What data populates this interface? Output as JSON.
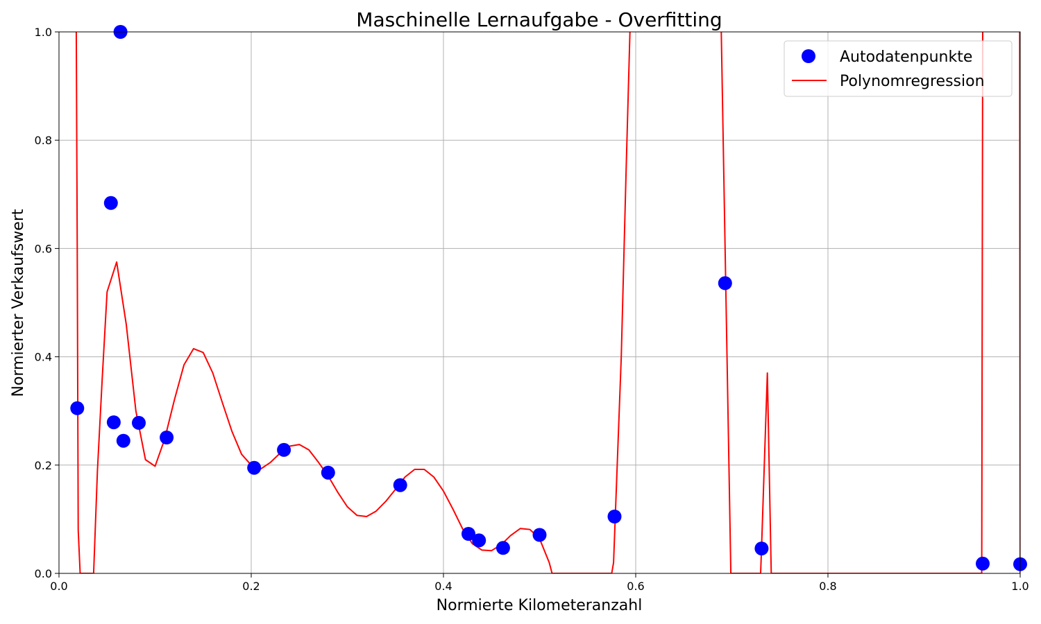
{
  "chart_data": {
    "type": "scatter",
    "title": "Maschinelle Lernaufgabe - Overfitting",
    "xlabel": "Normierte Kilometeranzahl",
    "ylabel": "Normierter Verkaufswert",
    "xlim": [
      0.0,
      1.0
    ],
    "ylim": [
      0.0,
      1.0
    ],
    "grid": true,
    "legend_position": "top-right",
    "x_ticks": [
      "0.0",
      "0.2",
      "0.4",
      "0.6",
      "0.8",
      "1.0"
    ],
    "y_ticks": [
      "0.0",
      "0.2",
      "0.4",
      "0.6",
      "0.8",
      "1.0"
    ],
    "series": [
      {
        "name": "Autodatenpunkte",
        "kind": "scatter",
        "color": "#0000ff",
        "points": [
          [
            0.019,
            0.305
          ],
          [
            0.054,
            0.684
          ],
          [
            0.057,
            0.279
          ],
          [
            0.064,
            1.0
          ],
          [
            0.067,
            0.245
          ],
          [
            0.083,
            0.278
          ],
          [
            0.112,
            0.251
          ],
          [
            0.203,
            0.195
          ],
          [
            0.234,
            0.228
          ],
          [
            0.28,
            0.186
          ],
          [
            0.355,
            0.163
          ],
          [
            0.426,
            0.073
          ],
          [
            0.437,
            0.061
          ],
          [
            0.462,
            0.047
          ],
          [
            0.5,
            0.071
          ],
          [
            0.578,
            0.105
          ],
          [
            0.693,
            0.536
          ],
          [
            0.731,
            0.046
          ],
          [
            0.961,
            0.018
          ],
          [
            1.0,
            0.017
          ]
        ]
      },
      {
        "name": "Polynomregression",
        "kind": "line",
        "color": "#ff0000",
        "points": [
          [
            0.017,
            1.05
          ],
          [
            0.018,
            1.0
          ],
          [
            0.019,
            0.6
          ],
          [
            0.02,
            0.08
          ],
          [
            0.022,
            0.0
          ],
          [
            0.036,
            0.0
          ],
          [
            0.04,
            0.19
          ],
          [
            0.045,
            0.36
          ],
          [
            0.05,
            0.52
          ],
          [
            0.06,
            0.575
          ],
          [
            0.07,
            0.46
          ],
          [
            0.08,
            0.3
          ],
          [
            0.09,
            0.21
          ],
          [
            0.1,
            0.198
          ],
          [
            0.11,
            0.248
          ],
          [
            0.12,
            0.32
          ],
          [
            0.13,
            0.385
          ],
          [
            0.14,
            0.415
          ],
          [
            0.15,
            0.408
          ],
          [
            0.16,
            0.37
          ],
          [
            0.17,
            0.315
          ],
          [
            0.18,
            0.262
          ],
          [
            0.19,
            0.22
          ],
          [
            0.2,
            0.2
          ],
          [
            0.21,
            0.193
          ],
          [
            0.22,
            0.205
          ],
          [
            0.23,
            0.222
          ],
          [
            0.24,
            0.235
          ],
          [
            0.25,
            0.238
          ],
          [
            0.26,
            0.228
          ],
          [
            0.27,
            0.205
          ],
          [
            0.28,
            0.18
          ],
          [
            0.29,
            0.15
          ],
          [
            0.3,
            0.123
          ],
          [
            0.31,
            0.107
          ],
          [
            0.32,
            0.105
          ],
          [
            0.33,
            0.115
          ],
          [
            0.34,
            0.133
          ],
          [
            0.35,
            0.155
          ],
          [
            0.36,
            0.178
          ],
          [
            0.37,
            0.192
          ],
          [
            0.38,
            0.192
          ],
          [
            0.39,
            0.178
          ],
          [
            0.4,
            0.152
          ],
          [
            0.41,
            0.118
          ],
          [
            0.42,
            0.082
          ],
          [
            0.43,
            0.055
          ],
          [
            0.44,
            0.043
          ],
          [
            0.45,
            0.042
          ],
          [
            0.46,
            0.053
          ],
          [
            0.47,
            0.07
          ],
          [
            0.48,
            0.083
          ],
          [
            0.49,
            0.081
          ],
          [
            0.5,
            0.064
          ],
          [
            0.51,
            0.02
          ],
          [
            0.513,
            0.0
          ],
          [
            0.575,
            0.0
          ],
          [
            0.577,
            0.02
          ],
          [
            0.585,
            0.4
          ],
          [
            0.59,
            0.74
          ],
          [
            0.594,
            1.0
          ],
          [
            0.596,
            1.05
          ],
          [
            0.688,
            1.05
          ],
          [
            0.689,
            1.0
          ],
          [
            0.694,
            0.5
          ],
          [
            0.699,
            0.0
          ],
          [
            0.73,
            0.0
          ],
          [
            0.731,
            0.05
          ],
          [
            0.737,
            0.37
          ],
          [
            0.741,
            0.0
          ],
          [
            0.96,
            0.0
          ],
          [
            0.961,
            1.0
          ],
          [
            0.961,
            1.05
          ],
          [
            0.9995,
            1.05
          ],
          [
            1.0,
            0.0
          ]
        ]
      }
    ]
  }
}
